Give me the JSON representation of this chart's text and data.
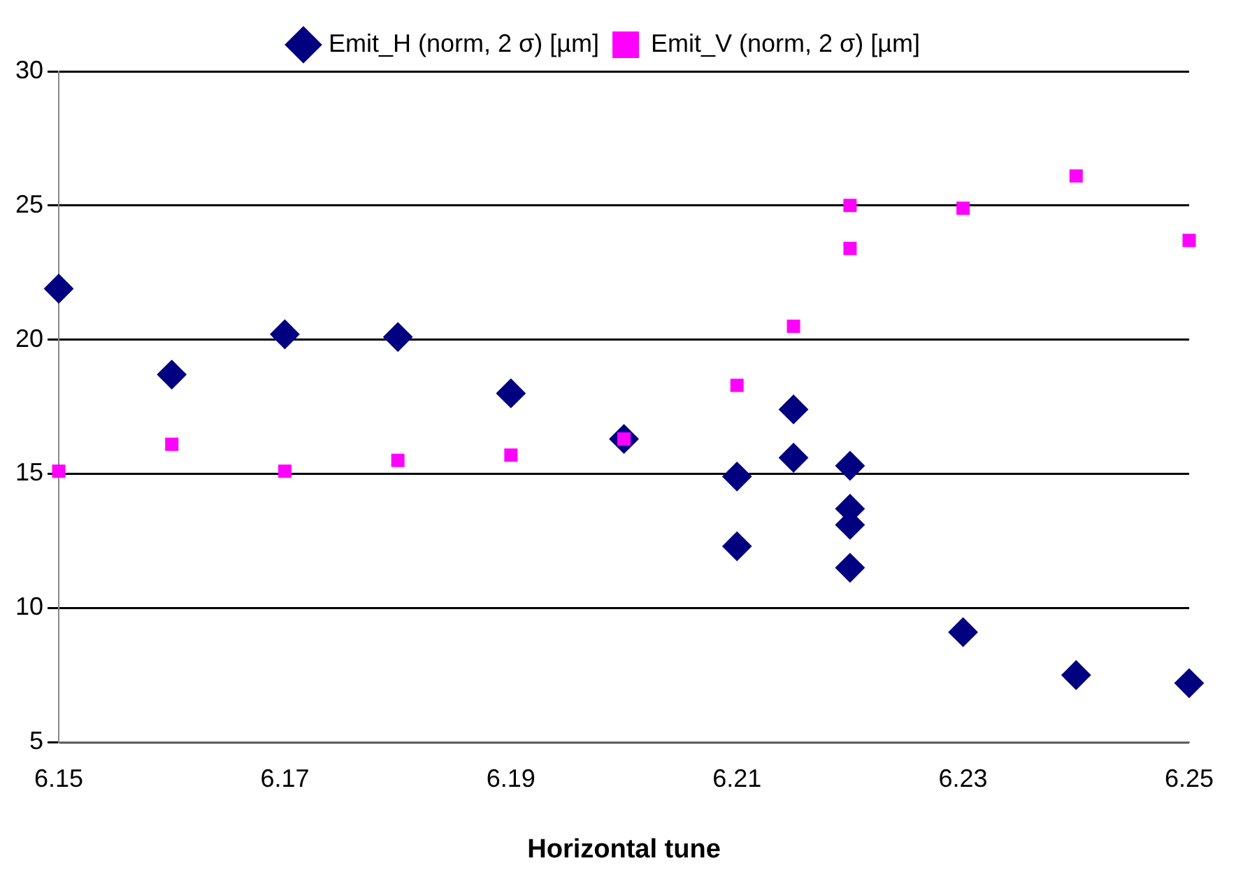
{
  "chart_data": {
    "type": "scatter",
    "xlabel": "Horizontal tune",
    "xlim": [
      6.15,
      6.25
    ],
    "xticks": [
      6.15,
      6.17,
      6.19,
      6.21,
      6.23,
      6.25
    ],
    "ylim": [
      5,
      30
    ],
    "yticks": [
      5,
      10,
      15,
      20,
      25,
      30
    ],
    "grid": "y",
    "legend": "top",
    "series": [
      {
        "name": "Emit_H (norm, 2 σ) [µm]",
        "color": "#000080",
        "marker": "diamond",
        "x": [
          6.15,
          6.16,
          6.17,
          6.18,
          6.19,
          6.2,
          6.21,
          6.21,
          6.215,
          6.215,
          6.22,
          6.22,
          6.22,
          6.22,
          6.23,
          6.24,
          6.25
        ],
        "values": [
          21.9,
          18.7,
          20.2,
          20.1,
          18.0,
          16.3,
          14.9,
          12.3,
          17.4,
          15.6,
          15.3,
          13.7,
          13.1,
          11.5,
          9.1,
          7.5,
          7.2
        ]
      },
      {
        "name": "Emit_V (norm, 2 σ) [µm]",
        "color": "#ff00ff",
        "marker": "square",
        "x": [
          6.15,
          6.16,
          6.17,
          6.18,
          6.19,
          6.2,
          6.21,
          6.215,
          6.22,
          6.22,
          6.23,
          6.24,
          6.25
        ],
        "values": [
          15.1,
          16.1,
          15.1,
          15.5,
          15.7,
          16.3,
          18.3,
          20.5,
          25.0,
          23.4,
          24.9,
          26.1,
          23.7
        ]
      }
    ]
  }
}
